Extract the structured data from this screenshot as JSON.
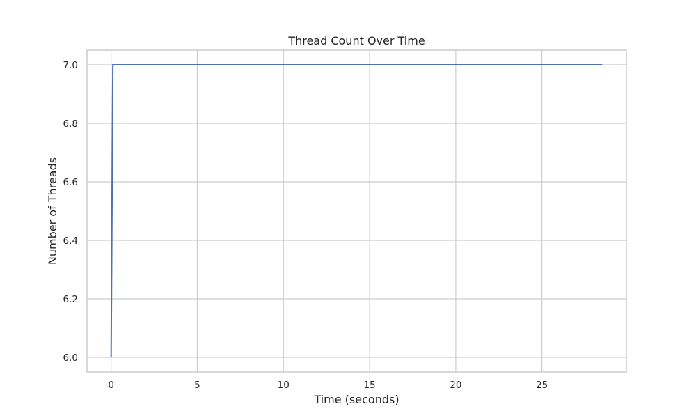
{
  "chart_data": {
    "type": "line",
    "title": "Thread Count Over Time",
    "xlabel": "Time (seconds)",
    "ylabel": "Number of Threads",
    "xlim": [
      -1.4,
      29.9
    ],
    "ylim": [
      5.95,
      7.05
    ],
    "xticks": [
      0,
      5,
      10,
      15,
      20,
      25
    ],
    "xtick_labels": [
      "0",
      "5",
      "10",
      "15",
      "20",
      "25"
    ],
    "yticks": [
      6.0,
      6.2,
      6.4,
      6.6,
      6.8,
      7.0
    ],
    "ytick_labels": [
      "6.0",
      "6.2",
      "6.4",
      "6.6",
      "6.8",
      "7.0"
    ],
    "grid": true,
    "series": [
      {
        "color": "#4c72b0",
        "x": [
          0,
          0.1,
          28.5
        ],
        "y": [
          6,
          7,
          7
        ]
      }
    ]
  }
}
